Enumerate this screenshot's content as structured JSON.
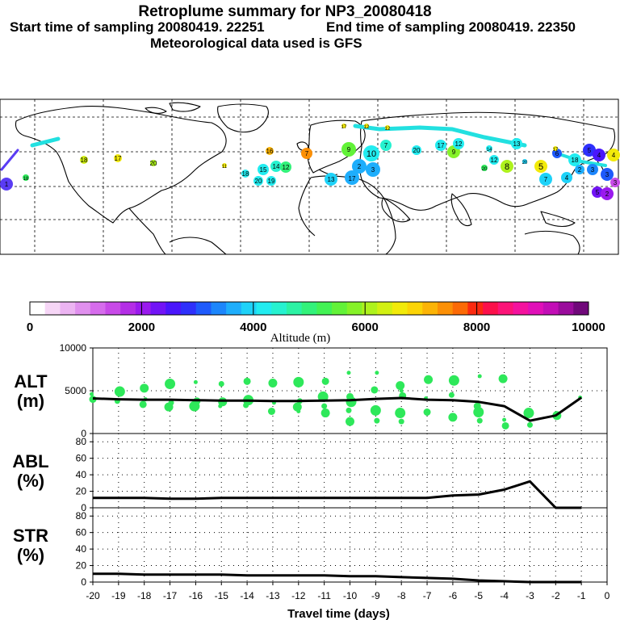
{
  "header": {
    "title": "Retroplume summary for NP3_20080418",
    "start_label": "Start time of sampling 20080419. 22251",
    "end_label": "End time of sampling 20080419. 22350",
    "met_label": "Meteorological data used is GFS"
  },
  "colors": {
    "series_line": "#000000",
    "points": "#2ee85a",
    "map_trail": "#22e0e0"
  },
  "colorbar": {
    "label": "Altitude (m)",
    "ticks": [
      "0",
      "2000",
      "4000",
      "6000",
      "8000",
      "10000"
    ],
    "colors": [
      "#ffffff",
      "#f6d6f6",
      "#ecb4f2",
      "#e090ee",
      "#d66cec",
      "#c84ae8",
      "#b42ee6",
      "#9a1aee",
      "#7214f6",
      "#4a16fc",
      "#2e30fc",
      "#1e5afc",
      "#1c86fc",
      "#1eaefc",
      "#1ed2f8",
      "#22ecf0",
      "#26f2d0",
      "#2cf2a4",
      "#32f27a",
      "#42f254",
      "#62f238",
      "#86f228",
      "#aef21c",
      "#d2f012",
      "#f2ea0a",
      "#fcd406",
      "#fcb406",
      "#fc9006",
      "#fc6a06",
      "#fc2a10",
      "#fc104a",
      "#fc1478",
      "#f4129e",
      "#e010b8",
      "#c20eb6",
      "#9a0c9c",
      "#70087a"
    ]
  },
  "map_labels": [
    "18",
    "19",
    "20",
    "16",
    "17",
    "15",
    "14",
    "13",
    "12",
    "11",
    "10",
    "9",
    "8",
    "7",
    "6",
    "5",
    "4",
    "3",
    "2",
    "1"
  ],
  "chart_data": [
    {
      "type": "line",
      "panel": "ALT",
      "ylabel_line1": "ALT",
      "ylabel_line2": "(m)",
      "ylim": [
        0,
        10000
      ],
      "yticks": [
        "10000",
        "5000",
        "0"
      ],
      "x": [
        -20,
        -19,
        -18,
        -17,
        -16,
        -15,
        -14,
        -13,
        -12,
        -11,
        -10,
        -9,
        -8,
        -7,
        -6,
        -5,
        -4,
        -3,
        -2,
        -1
      ],
      "values": [
        4100,
        4000,
        3950,
        3950,
        3900,
        3850,
        3850,
        3800,
        3800,
        3850,
        3900,
        4050,
        4150,
        3950,
        3900,
        3700,
        3200,
        1500,
        2100,
        4200
      ],
      "scatter": [
        [
          -20,
          4600
        ],
        [
          -20,
          4000
        ],
        [
          -19,
          4900
        ],
        [
          -19,
          3800
        ],
        [
          -18,
          5300
        ],
        [
          -18,
          4000
        ],
        [
          -18,
          3400
        ],
        [
          -17,
          5800
        ],
        [
          -17,
          3600
        ],
        [
          -17,
          3100
        ],
        [
          -16,
          6000
        ],
        [
          -16,
          3800
        ],
        [
          -16,
          3200
        ],
        [
          -15,
          5800
        ],
        [
          -15,
          3700
        ],
        [
          -15,
          3200
        ],
        [
          -14,
          6100
        ],
        [
          -14,
          3900
        ],
        [
          -14,
          3300
        ],
        [
          -13,
          5900
        ],
        [
          -13,
          3600
        ],
        [
          -13,
          2600
        ],
        [
          -12,
          6000
        ],
        [
          -12,
          3800
        ],
        [
          -12,
          3100
        ],
        [
          -12,
          2600
        ],
        [
          -11,
          6100
        ],
        [
          -11,
          4300
        ],
        [
          -11,
          3200
        ],
        [
          -11,
          2400
        ],
        [
          -10,
          7100
        ],
        [
          -10,
          4300
        ],
        [
          -10,
          3700
        ],
        [
          -10,
          2700
        ],
        [
          -10,
          1400
        ],
        [
          -9,
          7100
        ],
        [
          -9,
          5100
        ],
        [
          -9,
          2700
        ],
        [
          -9,
          1500
        ],
        [
          -8,
          5600
        ],
        [
          -8,
          5000
        ],
        [
          -8,
          4400
        ],
        [
          -8,
          2400
        ],
        [
          -8,
          1400
        ],
        [
          -7,
          6300
        ],
        [
          -7,
          4100
        ],
        [
          -7,
          2500
        ],
        [
          -6,
          6200
        ],
        [
          -6,
          4500
        ],
        [
          -6,
          1900
        ],
        [
          -5,
          6700
        ],
        [
          -5,
          3200
        ],
        [
          -5,
          2500
        ],
        [
          -5,
          1500
        ],
        [
          -4,
          6400
        ],
        [
          -4,
          1600
        ],
        [
          -4,
          900
        ],
        [
          -3,
          2400
        ],
        [
          -3,
          1000
        ],
        [
          -2,
          2100
        ],
        [
          -1,
          4200
        ]
      ]
    },
    {
      "type": "line",
      "panel": "ABL",
      "ylabel_line1": "ABL",
      "ylabel_line2": "(%)",
      "ylim": [
        0,
        90
      ],
      "yticks": [
        "80",
        "60",
        "40",
        "20",
        "0"
      ],
      "x": [
        -20,
        -19,
        -18,
        -17,
        -16,
        -15,
        -14,
        -13,
        -12,
        -11,
        -10,
        -9,
        -8,
        -7,
        -6,
        -5,
        -4,
        -3,
        -2,
        -1
      ],
      "values": [
        12,
        12,
        12,
        11,
        11,
        12,
        12,
        12,
        12,
        12,
        12,
        12,
        12,
        12,
        15,
        16,
        22,
        32,
        0,
        0
      ]
    },
    {
      "type": "line",
      "panel": "STR",
      "ylabel_line1": "STR",
      "ylabel_line2": "(%)",
      "ylim": [
        0,
        90
      ],
      "yticks": [
        "80",
        "60",
        "40",
        "20",
        "0"
      ],
      "x": [
        -20,
        -19,
        -18,
        -17,
        -16,
        -15,
        -14,
        -13,
        -12,
        -11,
        -10,
        -9,
        -8,
        -7,
        -6,
        -5,
        -4,
        -3,
        -2,
        -1
      ],
      "values": [
        10,
        10,
        9,
        9,
        9,
        9,
        8,
        8,
        8,
        8,
        7,
        7,
        6,
        5,
        4,
        2,
        1,
        0,
        0,
        0
      ],
      "xlabel": "Travel time (days)",
      "xticks": [
        "-20",
        "-19",
        "-18",
        "-17",
        "-16",
        "-15",
        "-14",
        "-13",
        "-12",
        "-11",
        "-10",
        "-9",
        "-8",
        "-7",
        "-6",
        "-5",
        "-4",
        "-3",
        "-2",
        "-1",
        "0"
      ],
      "xlim": [
        -20,
        0
      ]
    }
  ]
}
